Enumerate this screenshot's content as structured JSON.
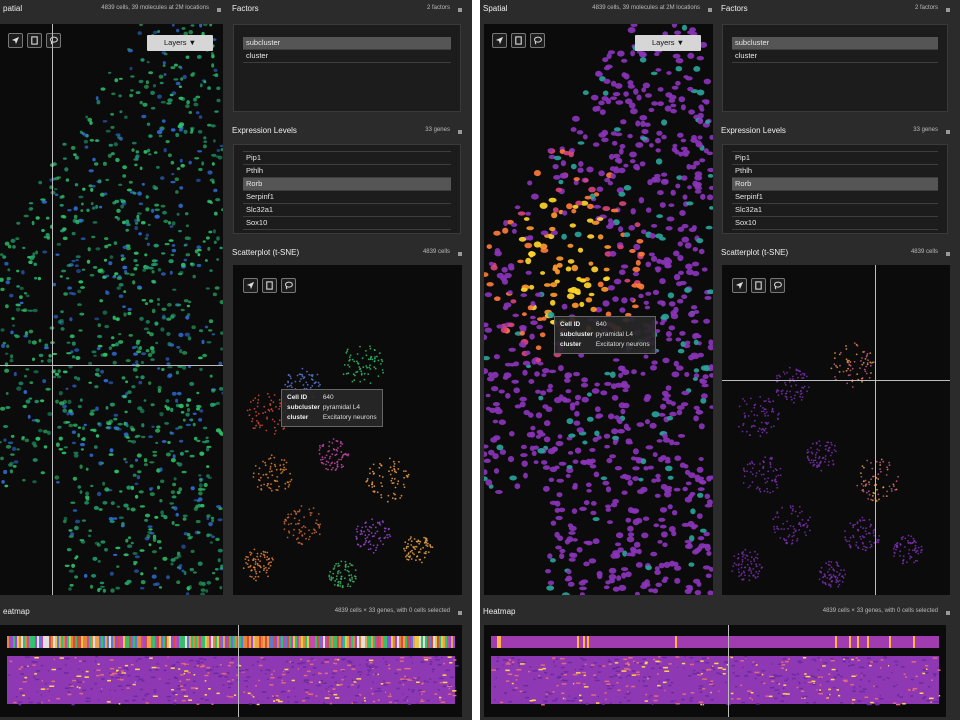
{
  "left": {
    "spatial": {
      "title": "patial",
      "info": "4839 cells, 39 molecules at 2M locations",
      "layers_label": "Layers ▼"
    },
    "factors": {
      "title": "Factors",
      "info": "2 factors",
      "items": [
        "subcluster",
        "cluster"
      ],
      "selected": 0
    },
    "expression": {
      "title": "Expression Levels",
      "info": "33 genes",
      "items": [
        "Pip1",
        "Pthlh",
        "Rorb",
        "Serpinf1",
        "Slc32a1",
        "Sox10"
      ],
      "selected": 2
    },
    "scatter": {
      "title": "Scatterplot (t-SNE)",
      "info": "4839 cells"
    },
    "tooltip": {
      "rows": [
        {
          "key": "Cell ID",
          "value": "640"
        },
        {
          "key": "subcluster",
          "value": "pyramidal L4"
        },
        {
          "key": "cluster",
          "value": "Excitatory neurons"
        }
      ]
    },
    "heatmap": {
      "title": "eatmap",
      "info": "4839 cells × 33 genes, with 0 cells selected"
    }
  },
  "right": {
    "spatial": {
      "title": "Spatial",
      "info": "4839 cells, 39 molecules at 2M locations",
      "layers_label": "Layers ▼"
    },
    "factors": {
      "title": "Factors",
      "info": "2 factors",
      "items": [
        "subcluster",
        "cluster"
      ],
      "selected": 0
    },
    "expression": {
      "title": "Expression Levels",
      "info": "33 genes",
      "items": [
        "Pip1",
        "Pthlh",
        "Rorb",
        "Serpinf1",
        "Slc32a1",
        "Sox10"
      ],
      "selected": 2
    },
    "scatter": {
      "title": "Scatterplot (t-SNE)",
      "info": "4839 cells"
    },
    "tooltip": {
      "rows": [
        {
          "key": "Cell ID",
          "value": "640"
        },
        {
          "key": "subcluster",
          "value": "pyramidal L4"
        },
        {
          "key": "cluster",
          "value": "Excitatory neurons"
        }
      ]
    },
    "heatmap": {
      "title": "Heatmap",
      "info": "4839 cells × 33 genes, with 0 cells selected"
    }
  },
  "icons": [
    "pointer-icon",
    "select-rectangle-icon",
    "lasso-icon",
    "close-icon"
  ],
  "colors": {
    "background": "#2b2b2b",
    "panel_body": "#0b0b0b",
    "selected_row": "#555555",
    "cell_default": "#7a2fb0",
    "cell_high": "#ffd52a",
    "cluster_green": "#2fc46b",
    "cluster_blue": "#2f6cd6"
  }
}
